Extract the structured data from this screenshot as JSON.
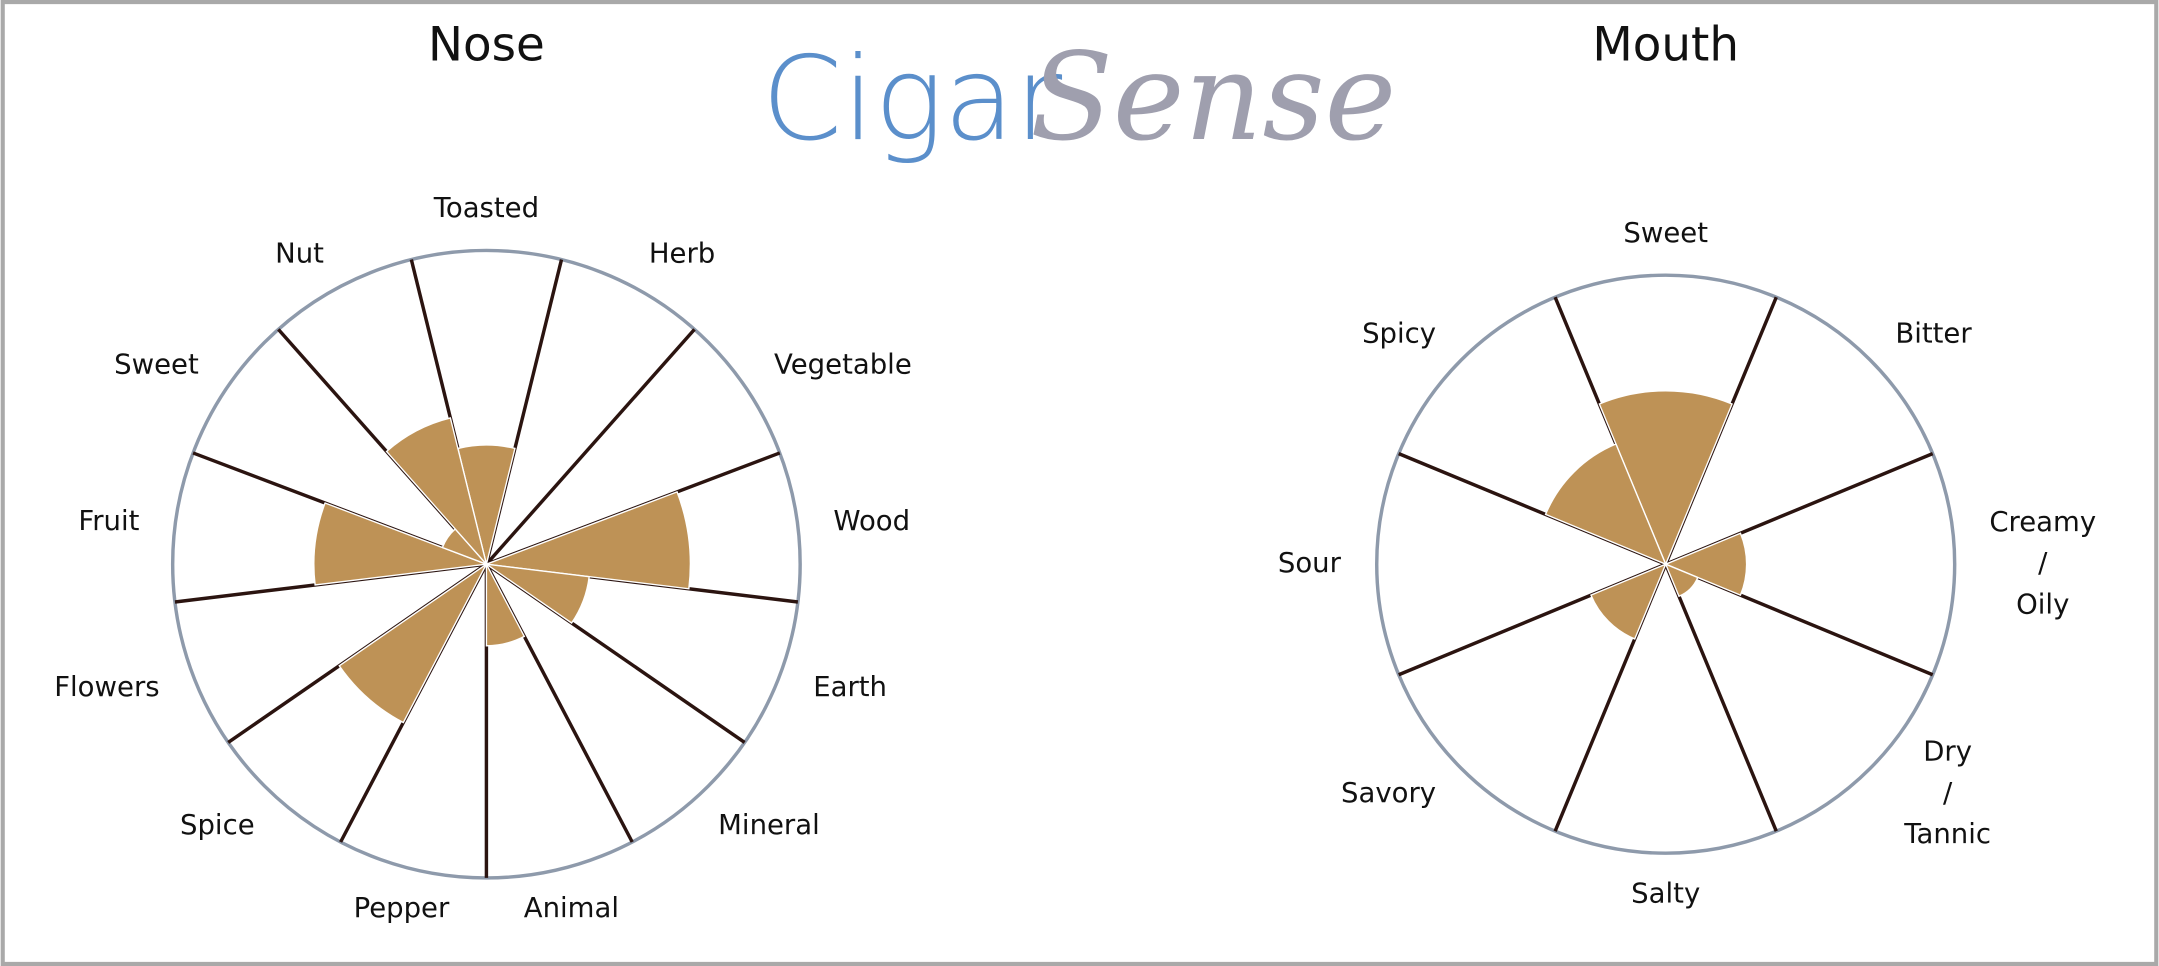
{
  "logo": {
    "text_left": "Cigar",
    "text_right": "Sense"
  },
  "chart_data": [
    {
      "type": "polar-area",
      "title": "Nose",
      "categories": [
        "Toasted",
        "Herb",
        "Vegetable",
        "Wood",
        "Earth",
        "Mineral",
        "Animal",
        "Pepper",
        "Spice",
        "Flowers",
        "Fruit",
        "Sweet",
        "Nut"
      ],
      "values": [
        3.8,
        0,
        0,
        6.5,
        3.3,
        0,
        2.6,
        0,
        5.7,
        0,
        5.5,
        1.5,
        4.8
      ],
      "rlim": [
        0,
        10
      ],
      "color": "#be9256"
    },
    {
      "type": "polar-area",
      "title": "Mouth",
      "categories": [
        "Sweet",
        "Bitter",
        "Creamy / Oily",
        "Dry / Tannic",
        "Salty",
        "Savory",
        "Sour",
        "Spicy"
      ],
      "values": [
        6.0,
        0,
        2.8,
        1.2,
        0,
        2.8,
        0,
        4.5
      ],
      "rlim": [
        0,
        10
      ],
      "color": "#be9256"
    }
  ]
}
